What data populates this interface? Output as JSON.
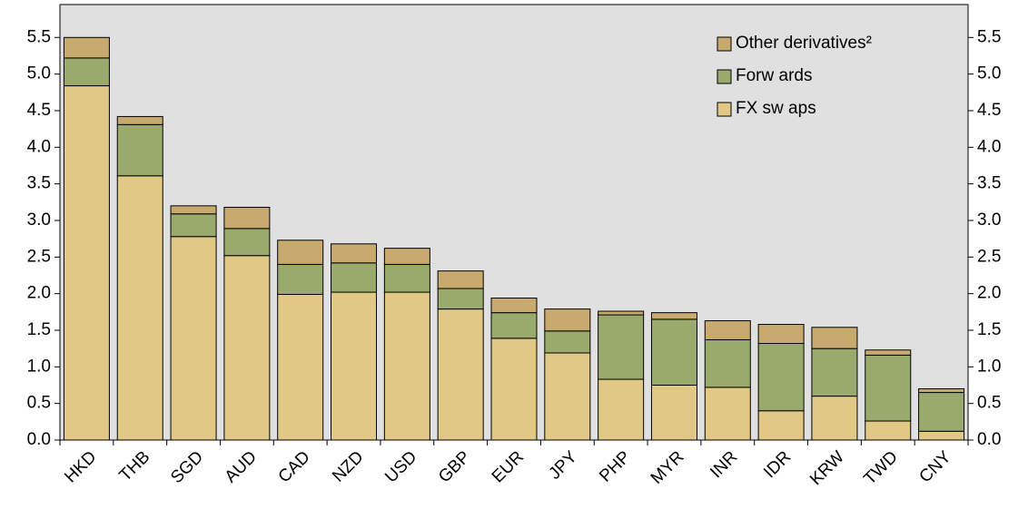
{
  "chart_data": {
    "type": "stacked_bar",
    "categories": [
      "HKD",
      "THB",
      "SGD",
      "AUD",
      "CAD",
      "NZD",
      "USD",
      "GBP",
      "EUR",
      "JPY",
      "PHP",
      "MYR",
      "INR",
      "IDR",
      "KRW",
      "TWD",
      "CNY"
    ],
    "series": [
      {
        "name": "FX sw aps",
        "color": "#e1c884",
        "values": [
          4.84,
          3.61,
          2.78,
          2.52,
          1.99,
          2.02,
          2.02,
          1.79,
          1.39,
          1.19,
          0.83,
          0.75,
          0.72,
          0.4,
          0.6,
          0.26,
          0.12
        ]
      },
      {
        "name": "Forw ards",
        "color": "#9aaa6c",
        "values": [
          0.38,
          0.7,
          0.31,
          0.37,
          0.41,
          0.4,
          0.38,
          0.28,
          0.35,
          0.3,
          0.88,
          0.9,
          0.65,
          0.92,
          0.65,
          0.9,
          0.53
        ]
      },
      {
        "name": "Other derivatives²",
        "color": "#c8aa6e",
        "values": [
          0.28,
          0.11,
          0.11,
          0.29,
          0.33,
          0.26,
          0.22,
          0.24,
          0.2,
          0.3,
          0.05,
          0.09,
          0.26,
          0.26,
          0.29,
          0.07,
          0.05
        ]
      }
    ],
    "ylim": [
      0,
      5.95
    ],
    "yticks": [
      {
        "value": 0,
        "label": "0.0"
      },
      0.5,
      {
        "value": 1,
        "label": "1.0"
      },
      1.5,
      {
        "value": 2,
        "label": "2.0"
      },
      2.5,
      {
        "value": 3,
        "label": "3.0"
      },
      3.5,
      {
        "value": 4,
        "label": "4.0"
      },
      4.5,
      {
        "value": 5,
        "label": "5.0"
      },
      5.5
    ],
    "y2lim": [
      0,
      5.95
    ],
    "y2ticks": [
      {
        "value": 0,
        "label": "0.0"
      },
      0.5,
      {
        "value": 1,
        "label": "1.0"
      },
      1.5,
      {
        "value": 2,
        "label": "2.0"
      },
      2.5,
      {
        "value": 3,
        "label": "3.0"
      },
      3.5,
      {
        "value": 4,
        "label": "4.0"
      },
      4.5,
      {
        "value": 5,
        "label": "5.0"
      },
      5.5
    ],
    "legend": "top-right"
  }
}
